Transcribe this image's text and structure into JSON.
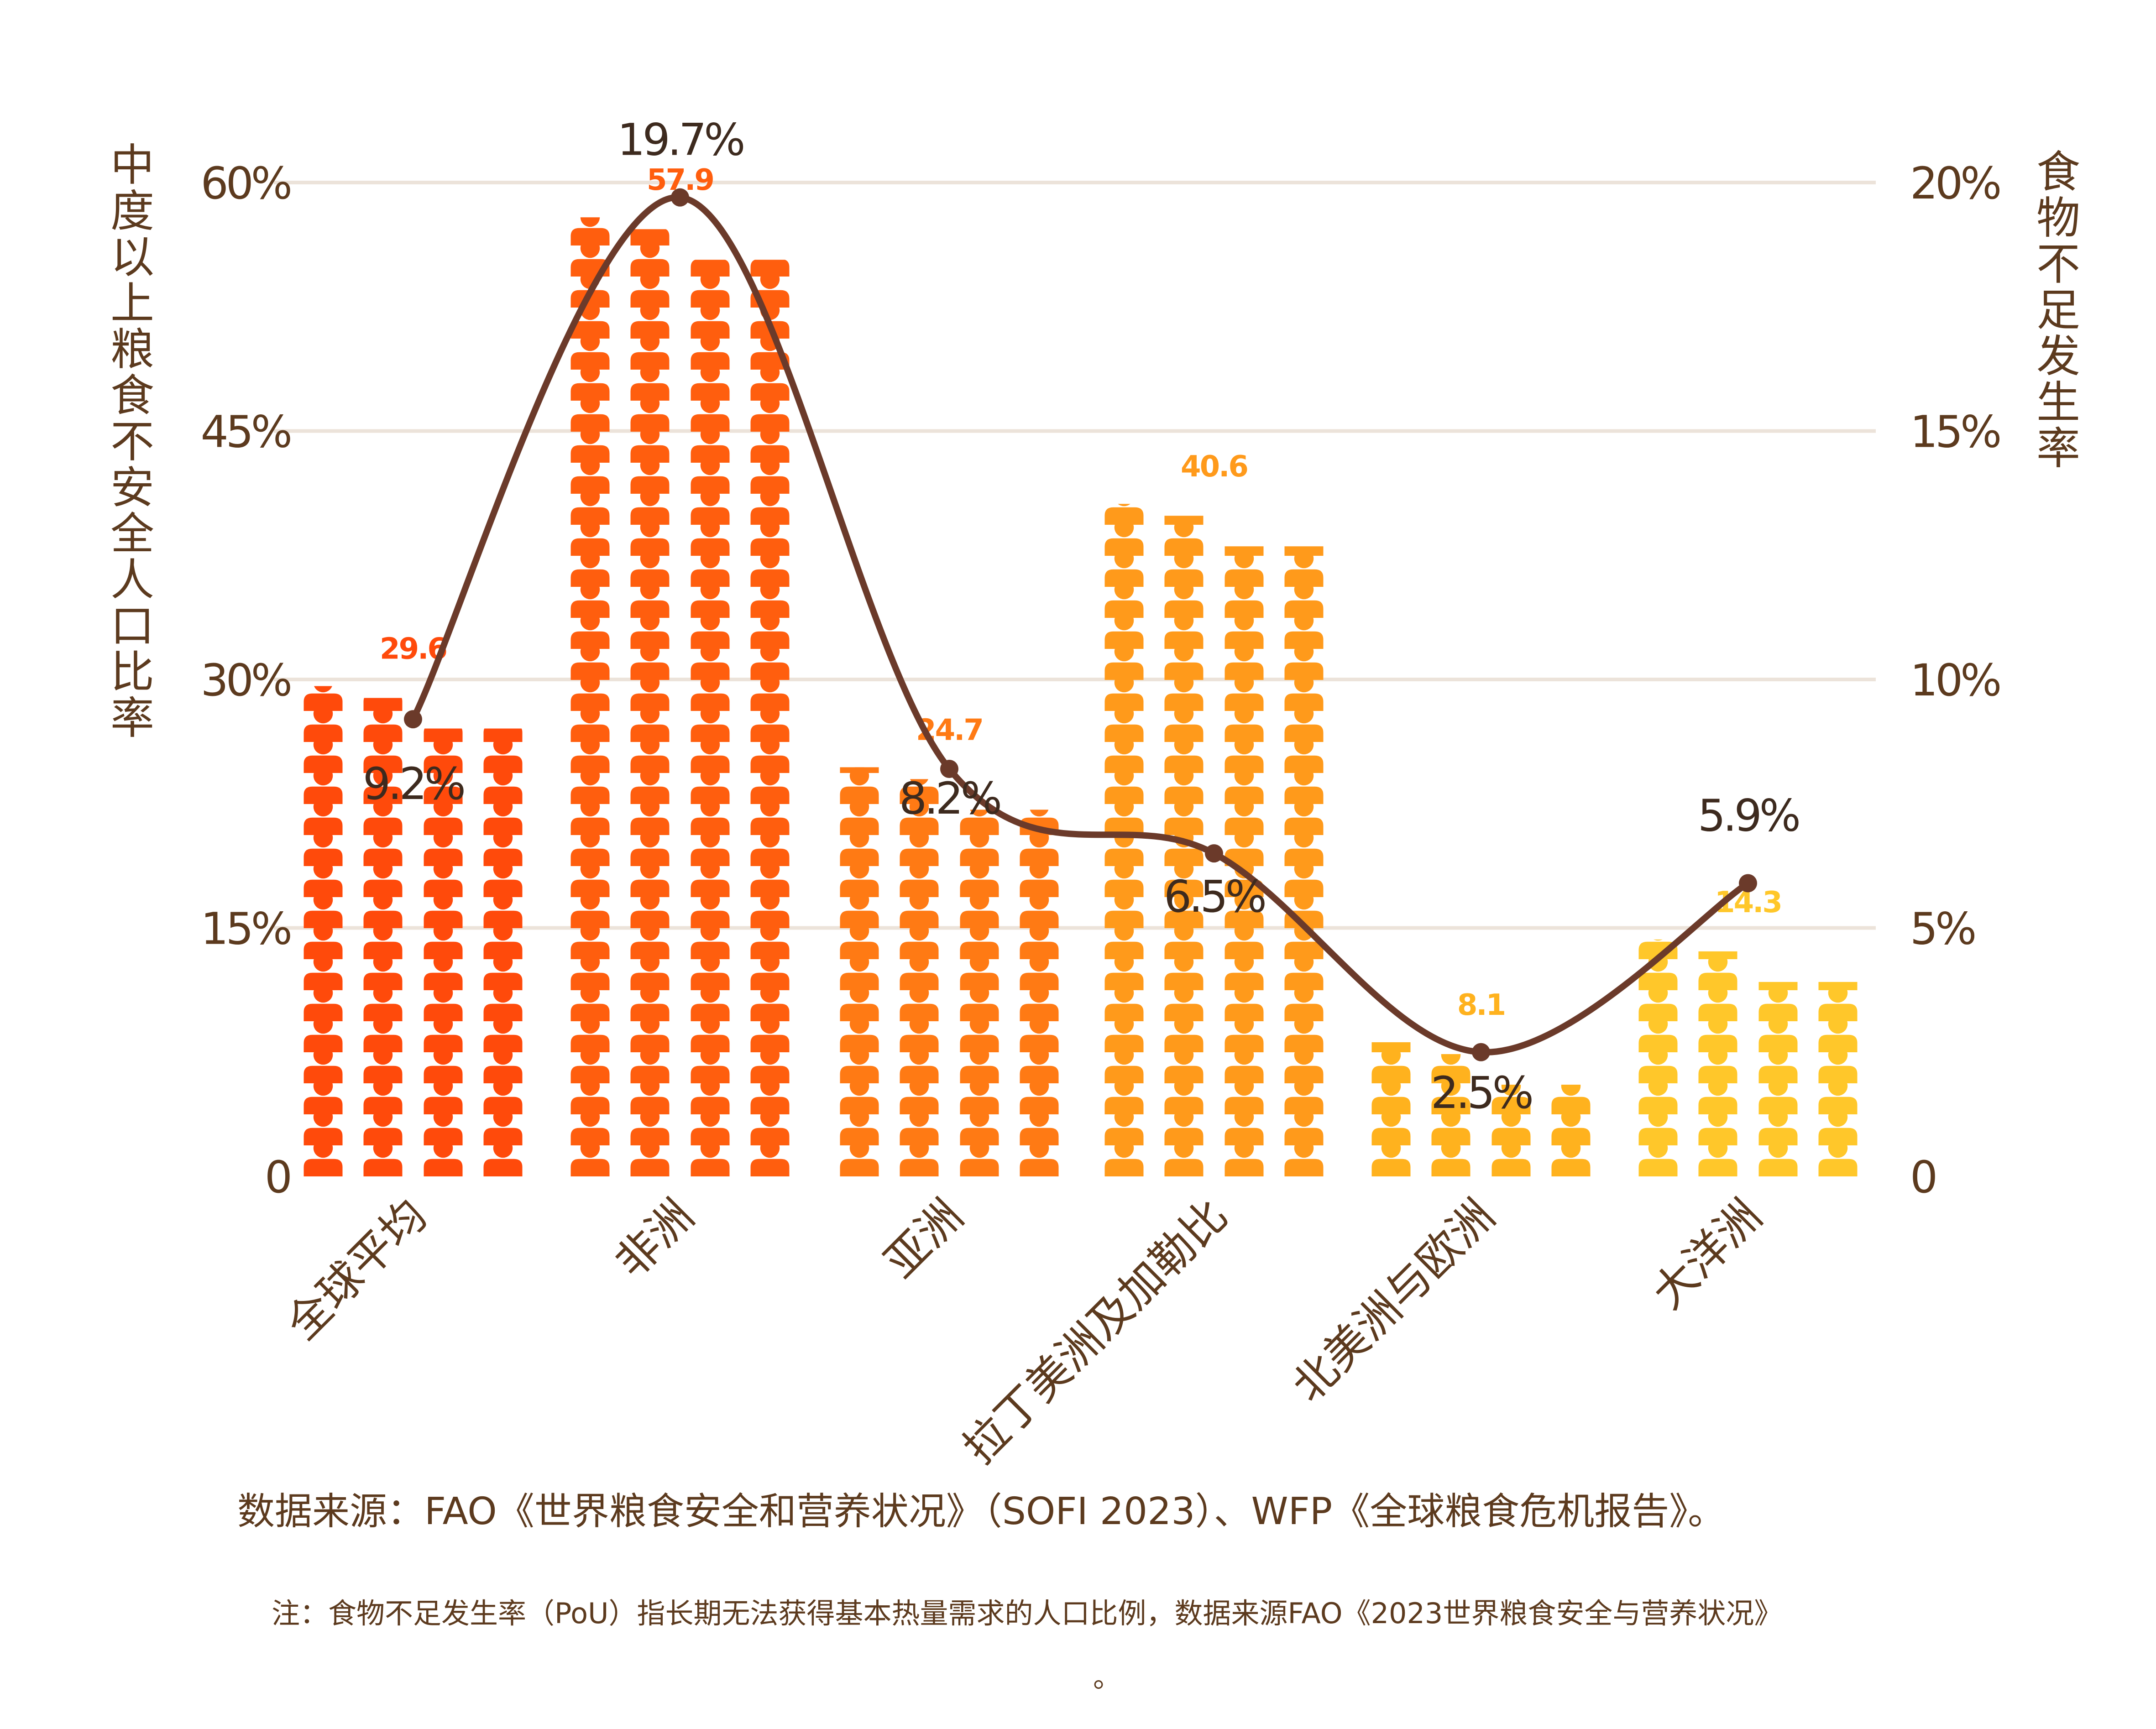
{
  "chart_data": {
    "type": "bar",
    "categories": [
      "全球平均",
      "非洲",
      "亚洲",
      "拉丁美洲及加勒比",
      "北美洲与欧洲",
      "大洋洲"
    ],
    "series": [
      {
        "values": [
          29.6,
          57.9,
          24.7,
          40.6,
          8.1,
          14.3
        ],
        "value_labels": [
          "29.6",
          "57.9",
          "24.7",
          "40.6",
          "8.1",
          "14.3"
        ],
        "axis": "left"
      },
      {
        "values": [
          9.2,
          19.7,
          8.2,
          6.5,
          2.5,
          5.9
        ],
        "value_labels": [
          "9.2%",
          "19.7%",
          "8.2%",
          "6.5%",
          "2.5%",
          "5.9%"
        ],
        "axis": "right",
        "type": "line"
      }
    ],
    "ylabel": "中度以上粮食不安全人口比率",
    "y2label": "食物不足发生率",
    "ylim": [
      0,
      60
    ],
    "y2lim": [
      0,
      20
    ],
    "yticks": [
      "0",
      "15%",
      "30%",
      "45%",
      "60%"
    ],
    "y2ticks": [
      "0",
      "5%",
      "10%",
      "15%",
      "20%"
    ],
    "grid": true,
    "bar_style": "pictogram-people",
    "colors": [
      "#ff4a0b",
      "#ff5e0e",
      "#ff7a14",
      "#ff9a1b",
      "#ffb21e",
      "#ffc72a"
    ],
    "line_color": "#6b3a2a"
  },
  "source": "数据来源：FAO《世界粮食安全和营养状况》（SOFI 2023）、WFP《全球粮食危机报告》。",
  "note_line1": "注：食物不足发生率（PoU）指长期无法获得基本热量需求的人口比例，数据来源FAO《2023世界粮食安全与营养状况》",
  "note_line2": "。"
}
